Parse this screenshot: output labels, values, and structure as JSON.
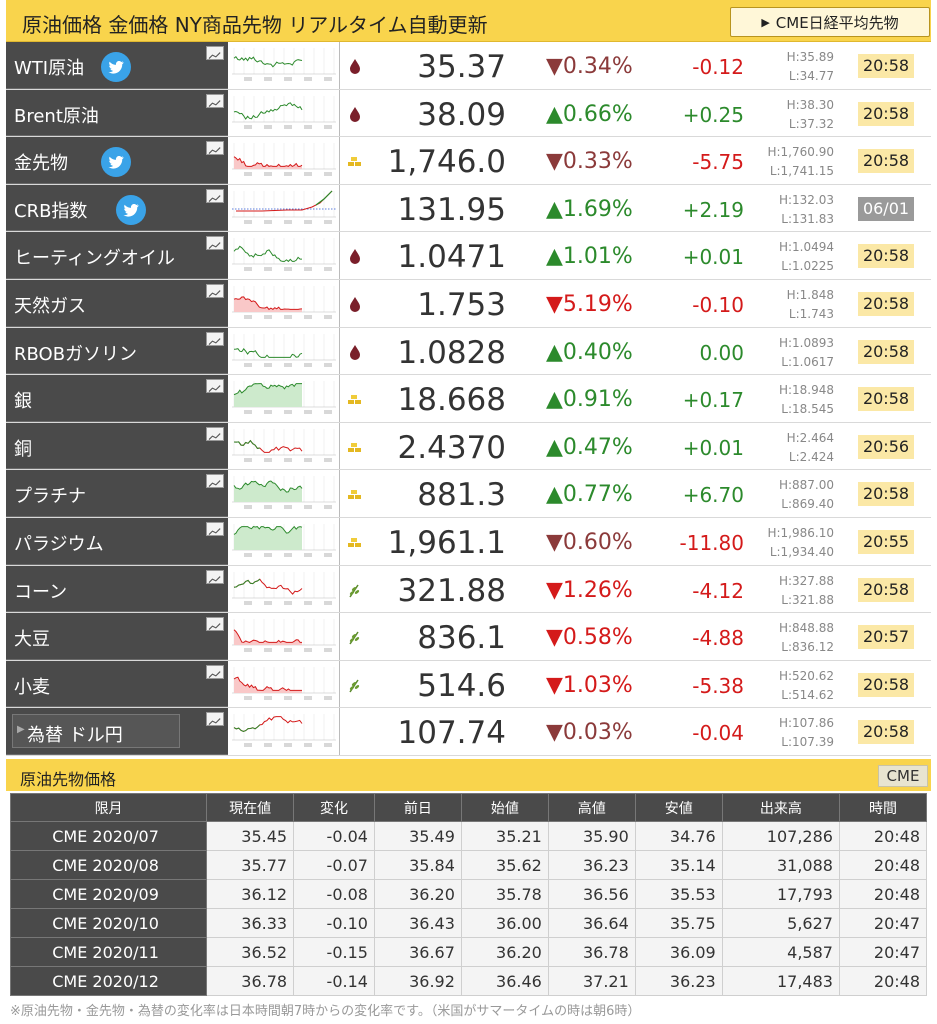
{
  "header": {
    "title": "原油価格 金価格 NY商品先物 リアルタイム自動更新",
    "cme_button": "CME日経平均先物"
  },
  "rows": [
    {
      "name": "WTI原油",
      "twitter": true,
      "category": "oil",
      "price": "35.37",
      "dir": "down",
      "pct": "0.34%",
      "change": "-0.12",
      "high": "H:35.89",
      "low": "L:34.77",
      "time": "20:58",
      "spark": "green-line"
    },
    {
      "name": "Brent原油",
      "twitter": false,
      "category": "oil",
      "price": "38.09",
      "dir": "up",
      "pct": "0.66%",
      "change": "+0.25",
      "high": "H:38.30",
      "low": "L:37.32",
      "time": "20:58",
      "spark": "green-line"
    },
    {
      "name": "金先物",
      "twitter": true,
      "category": "gold",
      "price": "1,746.0",
      "dir": "down",
      "pct": "0.33%",
      "change": "-5.75",
      "high": "H:1,760.90",
      "low": "L:1,741.15",
      "time": "20:58",
      "spark": "red-area"
    },
    {
      "name": "CRB指数",
      "twitter": true,
      "category": "none",
      "price": "131.95",
      "dir": "up",
      "pct": "1.69%",
      "change": "+2.19",
      "high": "H:132.03",
      "low": "L:131.83",
      "time": "06/01",
      "spark": "crb"
    },
    {
      "name": "ヒーティングオイル",
      "twitter": false,
      "category": "oil",
      "price": "1.0471",
      "dir": "up",
      "pct": "1.01%",
      "change": "+0.01",
      "high": "H:1.0494",
      "low": "L:1.0225",
      "time": "20:58",
      "spark": "green-line"
    },
    {
      "name": "天然ガス",
      "twitter": false,
      "category": "oil",
      "price": "1.753",
      "dir": "down-strong",
      "pct": "5.19%",
      "change": "-0.10",
      "high": "H:1.848",
      "low": "L:1.743",
      "time": "20:58",
      "spark": "red-area"
    },
    {
      "name": "RBOBガソリン",
      "twitter": false,
      "category": "oil",
      "price": "1.0828",
      "dir": "up",
      "pct": "0.40%",
      "change": "0.00",
      "high": "H:1.0893",
      "low": "L:1.0617",
      "time": "20:58",
      "spark": "green-line"
    },
    {
      "name": "銀",
      "twitter": false,
      "category": "gold",
      "price": "18.668",
      "dir": "up",
      "pct": "0.91%",
      "change": "+0.17",
      "high": "H:18.948",
      "low": "L:18.545",
      "time": "20:58",
      "spark": "green-area"
    },
    {
      "name": "銅",
      "twitter": false,
      "category": "gold",
      "price": "2.4370",
      "dir": "up",
      "pct": "0.47%",
      "change": "+0.01",
      "high": "H:2.464",
      "low": "L:2.424",
      "time": "20:56",
      "spark": "mixed"
    },
    {
      "name": "プラチナ",
      "twitter": false,
      "category": "gold",
      "price": "881.3",
      "dir": "up",
      "pct": "0.77%",
      "change": "+6.70",
      "high": "H:887.00",
      "low": "L:869.40",
      "time": "20:58",
      "spark": "green-area"
    },
    {
      "name": "パラジウム",
      "twitter": false,
      "category": "gold",
      "price": "1,961.1",
      "dir": "down",
      "pct": "0.60%",
      "change": "-11.80",
      "high": "H:1,986.10",
      "low": "L:1,934.40",
      "time": "20:55",
      "spark": "green-area"
    },
    {
      "name": "コーン",
      "twitter": false,
      "category": "grain",
      "price": "321.88",
      "dir": "down-strong",
      "pct": "1.26%",
      "change": "-4.12",
      "high": "H:327.88",
      "low": "L:321.88",
      "time": "20:58",
      "spark": "mixed"
    },
    {
      "name": "大豆",
      "twitter": false,
      "category": "grain",
      "price": "836.1",
      "dir": "down-strong",
      "pct": "0.58%",
      "change": "-4.88",
      "high": "H:848.88",
      "low": "L:836.12",
      "time": "20:57",
      "spark": "red-area"
    },
    {
      "name": "小麦",
      "twitter": false,
      "category": "grain",
      "price": "514.6",
      "dir": "down-strong",
      "pct": "1.03%",
      "change": "-5.38",
      "high": "H:520.62",
      "low": "L:514.62",
      "time": "20:58",
      "spark": "red-area"
    },
    {
      "name": "為替 ドル円",
      "twitter": false,
      "category": "none",
      "fx": true,
      "price": "107.74",
      "dir": "down",
      "pct": "0.03%",
      "change": "-0.04",
      "high": "H:107.86",
      "low": "L:107.39",
      "time": "20:58",
      "spark": "mixed"
    }
  ],
  "futures": {
    "title": "原油先物価格",
    "badge": "CME",
    "columns": [
      "限月",
      "現在値",
      "変化",
      "前日",
      "始値",
      "高値",
      "安値",
      "出来高",
      "時間"
    ],
    "rows": [
      [
        "CME 2020/07",
        "35.45",
        "-0.04",
        "35.49",
        "35.21",
        "35.90",
        "34.76",
        "107,286",
        "20:48"
      ],
      [
        "CME 2020/08",
        "35.77",
        "-0.07",
        "35.84",
        "35.62",
        "36.23",
        "35.14",
        "31,088",
        "20:48"
      ],
      [
        "CME 2020/09",
        "36.12",
        "-0.08",
        "36.20",
        "35.78",
        "36.56",
        "35.53",
        "17,793",
        "20:48"
      ],
      [
        "CME 2020/10",
        "36.33",
        "-0.10",
        "36.43",
        "36.00",
        "36.64",
        "35.75",
        "5,627",
        "20:47"
      ],
      [
        "CME 2020/11",
        "36.52",
        "-0.15",
        "36.67",
        "36.20",
        "36.78",
        "36.09",
        "4,587",
        "20:47"
      ],
      [
        "CME 2020/12",
        "36.78",
        "-0.14",
        "36.92",
        "36.46",
        "37.21",
        "36.23",
        "17,483",
        "20:48"
      ]
    ]
  },
  "footnote": "※原油先物・金先物・為替の変化率は日本時間朝7時からの変化率です。（米国がサマータイムの時は朝6時）",
  "colors": {
    "header": "#f9d44c",
    "up": "#2c8a2c",
    "down": "#8b3a3a",
    "down_strong": "#d41a1a",
    "twitter": "#3aa3e8"
  }
}
